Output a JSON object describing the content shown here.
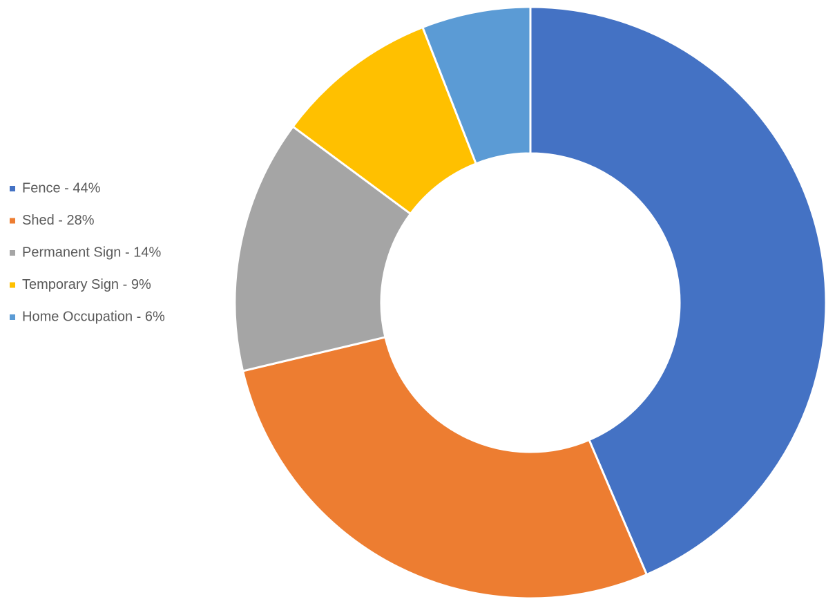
{
  "chart_data": {
    "type": "donut",
    "categories": [
      "Fence - 44%",
      "Shed - 28%",
      "Permanent Sign - 14%",
      "Temporary Sign - 9%",
      "Home Occupation - 6%"
    ],
    "values": [
      44,
      28,
      14,
      9,
      6
    ],
    "colors": [
      "#4472c4",
      "#ed7d31",
      "#a5a5a5",
      "#ffc000",
      "#5b9bd5"
    ],
    "legend": "left"
  }
}
